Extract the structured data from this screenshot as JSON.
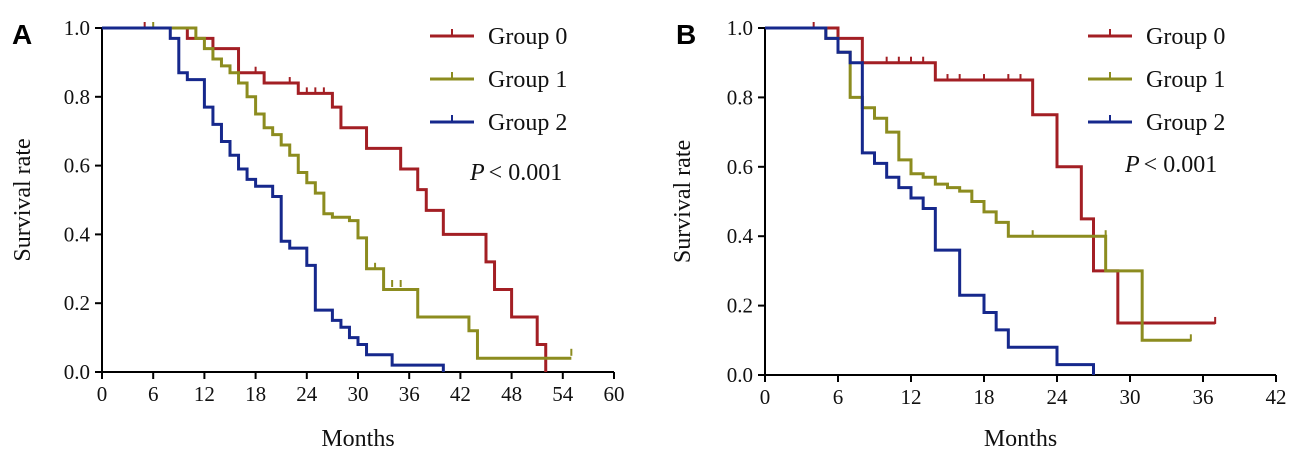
{
  "chart_data": [
    {
      "type": "line",
      "panel_label": "A",
      "xlabel": "Months",
      "ylabel": "Survival rate",
      "xlim": [
        0,
        60
      ],
      "ylim": [
        0,
        1.0
      ],
      "x_ticks": [
        0,
        6,
        12,
        18,
        24,
        30,
        36,
        42,
        48,
        54,
        60
      ],
      "y_ticks": [
        "0.0",
        "0.2",
        "0.4",
        "0.6",
        "0.8",
        "1.0"
      ],
      "legend_position": "top-right",
      "annotation": {
        "italic": "P",
        "rest": "< 0.001"
      },
      "series": [
        {
          "name": "Group 0",
          "color": "#a31f24",
          "steps": [
            [
              0,
              1.0
            ],
            [
              10,
              0.97
            ],
            [
              13,
              0.94
            ],
            [
              16,
              0.87
            ],
            [
              19,
              0.84
            ],
            [
              23,
              0.81
            ],
            [
              27,
              0.77
            ],
            [
              28,
              0.71
            ],
            [
              31,
              0.65
            ],
            [
              35,
              0.59
            ],
            [
              37,
              0.53
            ],
            [
              38,
              0.47
            ],
            [
              40,
              0.4
            ],
            [
              45,
              0.32
            ],
            [
              46,
              0.24
            ],
            [
              48,
              0.16
            ],
            [
              51,
              0.08
            ],
            [
              52,
              0.0
            ]
          ],
          "end": 52,
          "censors": [
            [
              5,
              1.0
            ],
            [
              18,
              0.87
            ],
            [
              22,
              0.84
            ],
            [
              24,
              0.81
            ],
            [
              25,
              0.81
            ],
            [
              26,
              0.81
            ]
          ]
        },
        {
          "name": "Group 1",
          "color": "#8c8c1f",
          "steps": [
            [
              0,
              1.0
            ],
            [
              11,
              0.97
            ],
            [
              12,
              0.94
            ],
            [
              13,
              0.91
            ],
            [
              14,
              0.89
            ],
            [
              15,
              0.87
            ],
            [
              16,
              0.84
            ],
            [
              17,
              0.8
            ],
            [
              18,
              0.75
            ],
            [
              19,
              0.71
            ],
            [
              20,
              0.69
            ],
            [
              21,
              0.66
            ],
            [
              22,
              0.63
            ],
            [
              23,
              0.58
            ],
            [
              24,
              0.55
            ],
            [
              25,
              0.52
            ],
            [
              26,
              0.46
            ],
            [
              27,
              0.45
            ],
            [
              29,
              0.44
            ],
            [
              30,
              0.39
            ],
            [
              31,
              0.3
            ],
            [
              33,
              0.24
            ],
            [
              37,
              0.16
            ],
            [
              43,
              0.12
            ],
            [
              44,
              0.04
            ]
          ],
          "end": 55,
          "censors": [
            [
              6,
              1.0
            ],
            [
              32,
              0.3
            ],
            [
              34,
              0.25
            ],
            [
              35,
              0.25
            ],
            [
              55,
              0.05
            ]
          ]
        },
        {
          "name": "Group 2",
          "color": "#16288c",
          "steps": [
            [
              0,
              1.0
            ],
            [
              8,
              0.97
            ],
            [
              9,
              0.87
            ],
            [
              10,
              0.85
            ],
            [
              12,
              0.77
            ],
            [
              13,
              0.72
            ],
            [
              14,
              0.67
            ],
            [
              15,
              0.63
            ],
            [
              16,
              0.59
            ],
            [
              17,
              0.56
            ],
            [
              18,
              0.54
            ],
            [
              20,
              0.51
            ],
            [
              21,
              0.38
            ],
            [
              22,
              0.36
            ],
            [
              24,
              0.31
            ],
            [
              25,
              0.18
            ],
            [
              27,
              0.15
            ],
            [
              28,
              0.13
            ],
            [
              29,
              0.1
            ],
            [
              30,
              0.08
            ],
            [
              31,
              0.05
            ],
            [
              34,
              0.02
            ],
            [
              40,
              0.0
            ]
          ],
          "end": 40,
          "censors": []
        }
      ]
    },
    {
      "type": "line",
      "panel_label": "B",
      "xlabel": "Months",
      "ylabel": "Survival rate",
      "xlim": [
        0,
        42
      ],
      "ylim": [
        0,
        1.0
      ],
      "x_ticks": [
        0,
        6,
        12,
        18,
        24,
        30,
        36,
        42
      ],
      "y_ticks": [
        "0.0",
        "0.2",
        "0.4",
        "0.6",
        "0.8",
        "1.0"
      ],
      "legend_position": "top-right",
      "annotation": {
        "italic": "P",
        "rest": "< 0.001"
      },
      "series": [
        {
          "name": "Group 0",
          "color": "#a31f24",
          "steps": [
            [
              0,
              1.0
            ],
            [
              6,
              0.97
            ],
            [
              8,
              0.9
            ],
            [
              14,
              0.85
            ],
            [
              22,
              0.75
            ],
            [
              24,
              0.6
            ],
            [
              26,
              0.45
            ],
            [
              27,
              0.3
            ],
            [
              29,
              0.15
            ]
          ],
          "end": 37,
          "censors": [
            [
              4,
              1.0
            ],
            [
              10,
              0.9
            ],
            [
              11,
              0.9
            ],
            [
              12,
              0.9
            ],
            [
              13,
              0.9
            ],
            [
              15,
              0.85
            ],
            [
              16,
              0.85
            ],
            [
              18,
              0.85
            ],
            [
              20,
              0.85
            ],
            [
              21,
              0.85
            ],
            [
              37,
              0.15
            ]
          ]
        },
        {
          "name": "Group 1",
          "color": "#8c8c1f",
          "steps": [
            [
              0,
              1.0
            ],
            [
              5,
              0.97
            ],
            [
              6,
              0.93
            ],
            [
              7,
              0.8
            ],
            [
              8,
              0.77
            ],
            [
              9,
              0.74
            ],
            [
              10,
              0.7
            ],
            [
              11,
              0.62
            ],
            [
              12,
              0.58
            ],
            [
              13,
              0.57
            ],
            [
              14,
              0.55
            ],
            [
              15,
              0.54
            ],
            [
              16,
              0.53
            ],
            [
              17,
              0.5
            ],
            [
              18,
              0.47
            ],
            [
              19,
              0.44
            ],
            [
              20,
              0.4
            ],
            [
              28,
              0.3
            ],
            [
              31,
              0.1
            ]
          ],
          "end": 35,
          "censors": [
            [
              22,
              0.4
            ],
            [
              28,
              0.4
            ],
            [
              35,
              0.1
            ]
          ]
        },
        {
          "name": "Group 2",
          "color": "#16288c",
          "steps": [
            [
              0,
              1.0
            ],
            [
              5,
              0.97
            ],
            [
              6,
              0.93
            ],
            [
              7,
              0.9
            ],
            [
              8,
              0.64
            ],
            [
              9,
              0.61
            ],
            [
              10,
              0.57
            ],
            [
              11,
              0.54
            ],
            [
              12,
              0.51
            ],
            [
              13,
              0.48
            ],
            [
              14,
              0.36
            ],
            [
              16,
              0.23
            ],
            [
              18,
              0.18
            ],
            [
              19,
              0.13
            ],
            [
              20,
              0.08
            ],
            [
              24,
              0.03
            ],
            [
              27,
              0.0
            ]
          ],
          "end": 27,
          "censors": []
        }
      ]
    }
  ]
}
